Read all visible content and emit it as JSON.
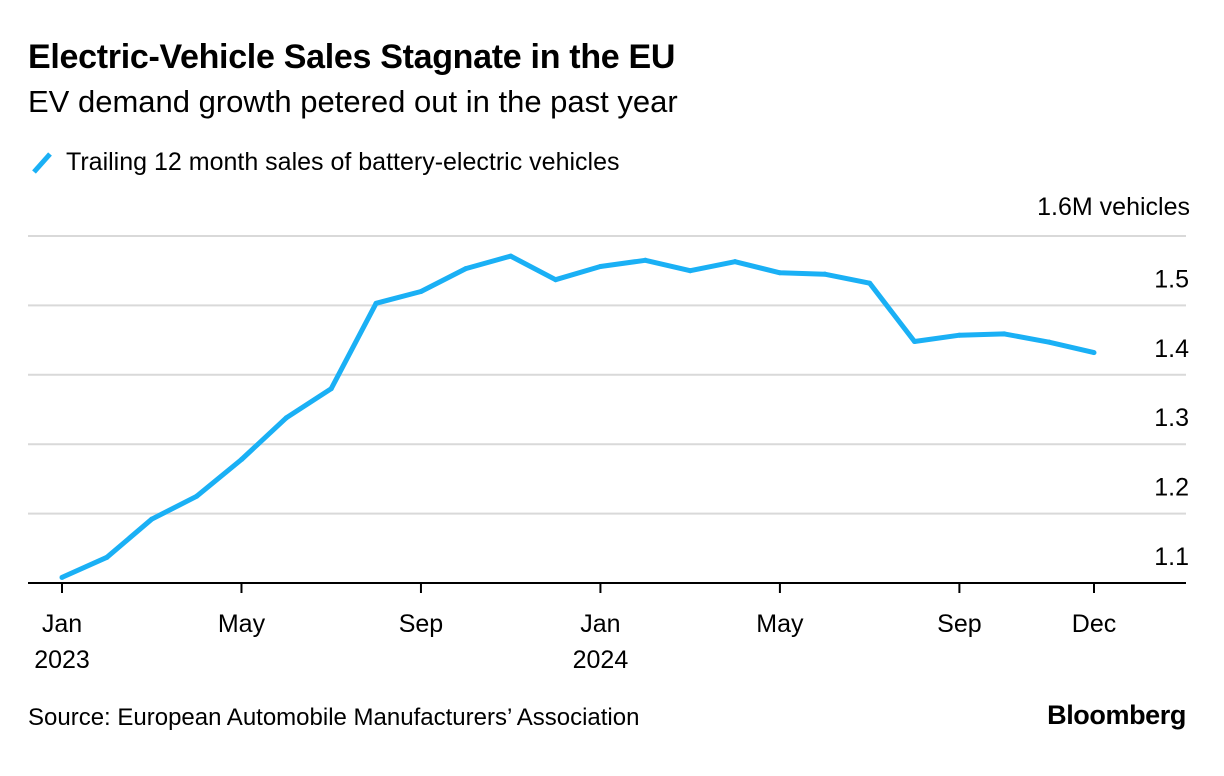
{
  "colors": {
    "line": "#1AB0F5",
    "grid": "#D9D9D9",
    "axis": "#000000"
  },
  "chart_data": {
    "type": "line",
    "title": "Electric-Vehicle Sales Stagnate in the EU",
    "subtitle": "EV demand growth petered out in the past year",
    "legend": "top-left",
    "series": [
      {
        "name": "Trailing 12 month sales of battery-electric vehicles",
        "values": [
          1.108,
          1.137,
          1.192,
          1.225,
          1.278,
          1.338,
          1.38,
          1.503,
          1.52,
          1.553,
          1.571,
          1.537,
          1.556,
          1.565,
          1.55,
          1.563,
          1.547,
          1.545,
          1.532,
          1.448,
          1.457,
          1.459,
          1.447,
          1.432
        ]
      }
    ],
    "x_ticks": [
      {
        "index": 0,
        "label": "Jan",
        "year": "2023"
      },
      {
        "index": 4,
        "label": "May",
        "year": ""
      },
      {
        "index": 8,
        "label": "Sep",
        "year": ""
      },
      {
        "index": 12,
        "label": "Jan",
        "year": "2024"
      },
      {
        "index": 16,
        "label": "May",
        "year": ""
      },
      {
        "index": 20,
        "label": "Sep",
        "year": ""
      },
      {
        "index": 23,
        "label": "Dec",
        "year": ""
      }
    ],
    "y_ticks": [
      "1.1",
      "1.2",
      "1.3",
      "1.4",
      "1.5",
      "1.6"
    ],
    "y_tick_values": [
      1.1,
      1.2,
      1.3,
      1.4,
      1.5,
      1.6
    ],
    "ylim": [
      1.1,
      1.6
    ],
    "ylabel": "1.6M vehicles",
    "xlabel": "",
    "grid": true
  },
  "footer": {
    "source": "Source: European Automobile Manufacturers’ Association",
    "brand": "Bloomberg"
  }
}
